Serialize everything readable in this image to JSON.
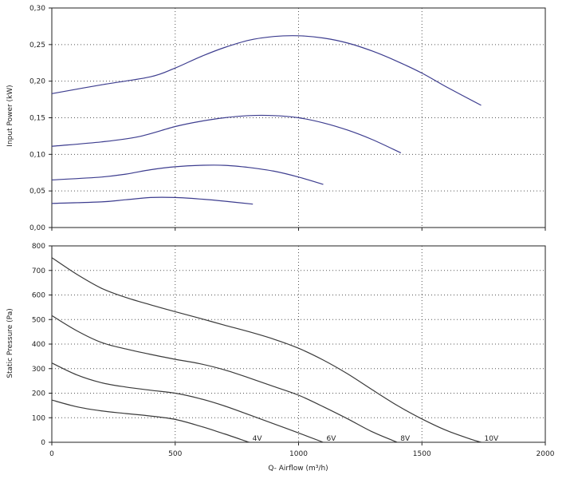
{
  "colors": {
    "power_curve": "#3d3d8f",
    "pressure_curve": "#3a3a3a",
    "frame": "#222222",
    "grid": "#555555"
  },
  "x_tick_labels": [
    "0",
    "500",
    "1000",
    "1500",
    "2000"
  ],
  "chart_data": [
    {
      "type": "line",
      "xlabel": "",
      "ylabel": "Input Power (kW)",
      "xlim": [
        0,
        2000
      ],
      "ylim": [
        0,
        0.3
      ],
      "grid": true,
      "y_tick_labels": [
        "0,00",
        "0,05",
        "0,10",
        "0,15",
        "0,20",
        "0,25",
        "0,30"
      ],
      "series": [
        {
          "x": [
            0,
            200,
            400,
            500,
            600,
            700,
            800,
            900,
            1000,
            1100,
            1200,
            1300,
            1400,
            1500,
            1600,
            1740
          ],
          "values": [
            0.183,
            0.195,
            0.206,
            0.218,
            0.233,
            0.246,
            0.256,
            0.261,
            0.262,
            0.259,
            0.252,
            0.241,
            0.227,
            0.211,
            0.192,
            0.167
          ]
        },
        {
          "x": [
            0,
            200,
            350,
            500,
            600,
            700,
            800,
            900,
            1000,
            1100,
            1200,
            1300,
            1415
          ],
          "values": [
            0.111,
            0.117,
            0.124,
            0.138,
            0.145,
            0.15,
            0.153,
            0.153,
            0.15,
            0.143,
            0.133,
            0.12,
            0.102
          ]
        },
        {
          "x": [
            0,
            200,
            300,
            400,
            500,
            600,
            700,
            800,
            900,
            1000,
            1100
          ],
          "values": [
            0.065,
            0.069,
            0.073,
            0.079,
            0.083,
            0.085,
            0.085,
            0.082,
            0.077,
            0.069,
            0.059
          ]
        },
        {
          "x": [
            0,
            200,
            300,
            400,
            500,
            600,
            700,
            815
          ],
          "values": [
            0.033,
            0.035,
            0.038,
            0.041,
            0.041,
            0.039,
            0.036,
            0.032
          ]
        }
      ]
    },
    {
      "type": "line",
      "xlabel": "Q- Airflow (m³/h)",
      "ylabel": "Static Pressure (Pa)",
      "xlim": [
        0,
        2000
      ],
      "ylim": [
        0,
        800
      ],
      "grid": true,
      "y_tick_labels": [
        "0",
        "100",
        "200",
        "300",
        "400",
        "500",
        "600",
        "700",
        "800"
      ],
      "series": [
        {
          "name": "10V",
          "x": [
            0,
            100,
            200,
            300,
            400,
            500,
            600,
            700,
            800,
            900,
            1000,
            1100,
            1200,
            1300,
            1400,
            1500,
            1600,
            1700,
            1740
          ],
          "values": [
            752,
            685,
            628,
            590,
            560,
            532,
            505,
            477,
            450,
            420,
            383,
            335,
            278,
            213,
            150,
            95,
            48,
            12,
            0
          ]
        },
        {
          "name": "8V",
          "x": [
            0,
            100,
            200,
            300,
            400,
            500,
            600,
            700,
            800,
            900,
            1000,
            1100,
            1200,
            1300,
            1400
          ],
          "values": [
            516,
            455,
            407,
            380,
            358,
            338,
            320,
            295,
            262,
            227,
            192,
            145,
            95,
            42,
            0
          ]
        },
        {
          "name": "6V",
          "x": [
            0,
            100,
            200,
            300,
            400,
            500,
            600,
            700,
            800,
            900,
            1000,
            1100
          ],
          "values": [
            323,
            275,
            243,
            225,
            212,
            200,
            178,
            148,
            112,
            75,
            38,
            0
          ]
        },
        {
          "name": "4V",
          "x": [
            0,
            100,
            200,
            300,
            400,
            500,
            600,
            700,
            800
          ],
          "values": [
            172,
            145,
            128,
            117,
            107,
            93,
            66,
            34,
            0
          ]
        }
      ]
    }
  ]
}
